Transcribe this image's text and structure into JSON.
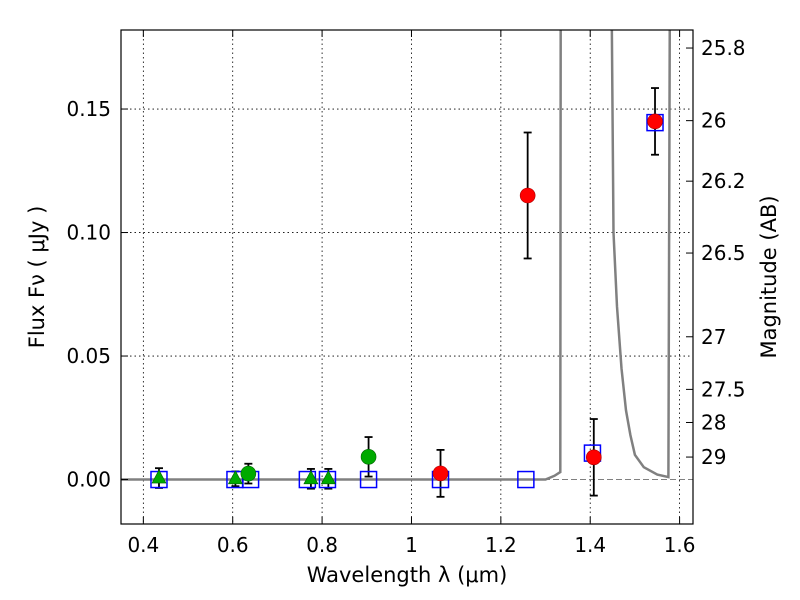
{
  "chart_data": {
    "type": "scatter",
    "xlabel": "Wavelength  λ (μm)",
    "ylabel": "Flux  Fν  ( μJy )",
    "y2label": "Magnitude (AB)",
    "xlim": [
      0.35,
      1.63
    ],
    "ylim": [
      -0.018,
      0.182
    ],
    "x_ticks": [
      0.4,
      0.6,
      0.8,
      1.0,
      1.2,
      1.4,
      1.6
    ],
    "x_tick_labels": [
      "0.4",
      "0.6",
      "0.8",
      "1",
      "1.2",
      "1.4",
      "1.6"
    ],
    "y_ticks": [
      0.0,
      0.05,
      0.1,
      0.15
    ],
    "y_tick_labels": [
      "0.00",
      "0.05",
      "0.10",
      "0.15"
    ],
    "y2_ticks": [
      {
        "label": "25.8",
        "flux": 0.1747
      },
      {
        "label": "26",
        "flux": 0.1453
      },
      {
        "label": "26.2",
        "flux": 0.1208
      },
      {
        "label": "26.5",
        "flux": 0.0917
      },
      {
        "label": "27",
        "flux": 0.0578
      },
      {
        "label": "27.5",
        "flux": 0.0365
      },
      {
        "label": "28",
        "flux": 0.0231
      },
      {
        "label": "29",
        "flux": 0.0091
      }
    ],
    "grid": true,
    "series": [
      {
        "marker": "triangle",
        "color": "#00aa00",
        "points": [
          {
            "x": 0.435,
            "y": 0.0006,
            "err": 0.004
          },
          {
            "x": 0.606,
            "y": 0.0003,
            "err": 0.003
          },
          {
            "x": 0.775,
            "y": 0.0003,
            "err": 0.004
          },
          {
            "x": 0.814,
            "y": 0.0003,
            "err": 0.004
          }
        ]
      },
      {
        "marker": "circle",
        "color": "#00aa00",
        "points": [
          {
            "x": 0.635,
            "y": 0.0024,
            "err": 0.004
          },
          {
            "x": 0.904,
            "y": 0.0092,
            "err": 0.008
          }
        ]
      },
      {
        "marker": "circle",
        "color": "#ff0000",
        "points": [
          {
            "x": 1.065,
            "y": 0.0025,
            "err": 0.0095
          },
          {
            "x": 1.26,
            "y": 0.115,
            "err": 0.0255
          },
          {
            "x": 1.408,
            "y": 0.009,
            "err": 0.0155
          },
          {
            "x": 1.545,
            "y": 0.145,
            "err": 0.0135
          }
        ]
      },
      {
        "marker": "square-open",
        "color": "#0000ff",
        "points": [
          {
            "x": 0.435,
            "y": 0.0
          },
          {
            "x": 0.605,
            "y": 0.0
          },
          {
            "x": 0.64,
            "y": 0.0
          },
          {
            "x": 0.767,
            "y": 0.0
          },
          {
            "x": 0.812,
            "y": 0.0
          },
          {
            "x": 0.904,
            "y": 0.0
          },
          {
            "x": 1.065,
            "y": 0.0
          },
          {
            "x": 1.256,
            "y": 0.0
          },
          {
            "x": 1.405,
            "y": 0.0107
          },
          {
            "x": 1.545,
            "y": 0.1445
          }
        ]
      },
      {
        "type": "line",
        "color": "#808080",
        "points": [
          [
            0.35,
            0.0
          ],
          [
            1.3,
            0.0
          ],
          [
            1.32,
            0.0015
          ],
          [
            1.333,
            0.003
          ],
          [
            1.334,
            0.19
          ],
          [
            1.448,
            0.19
          ],
          [
            1.452,
            0.1
          ],
          [
            1.46,
            0.07
          ],
          [
            1.47,
            0.045
          ],
          [
            1.48,
            0.028
          ],
          [
            1.49,
            0.018
          ],
          [
            1.5,
            0.01
          ],
          [
            1.52,
            0.005
          ],
          [
            1.55,
            0.002
          ],
          [
            1.575,
            0.001
          ],
          [
            1.578,
            0.19
          ]
        ]
      }
    ]
  }
}
